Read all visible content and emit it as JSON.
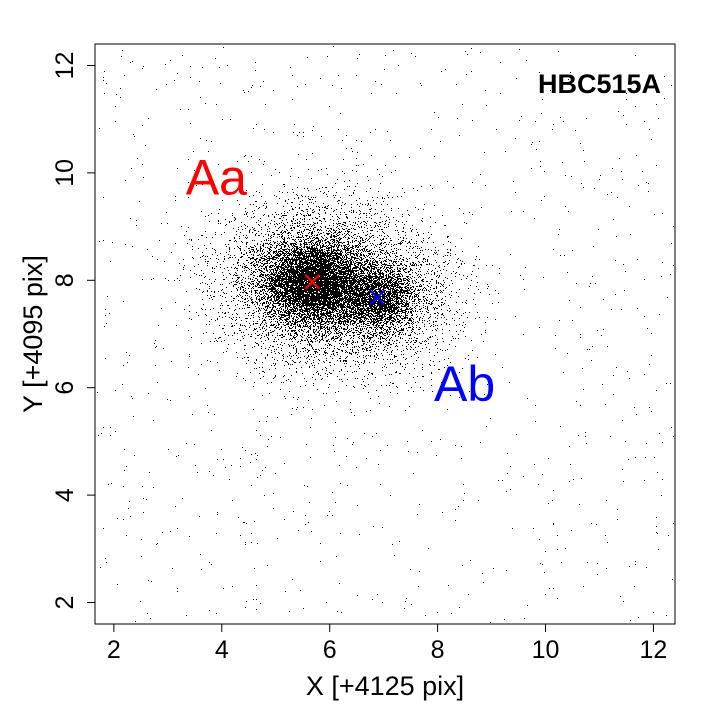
{
  "chart_data": {
    "type": "scatter",
    "title": "HBC515A",
    "xlabel": "X [+4125 pix]",
    "ylabel": "Y [+4095 pix]",
    "xlim": [
      1.65,
      12.4
    ],
    "ylim": [
      1.6,
      12.4
    ],
    "x_ticks": [
      2,
      4,
      6,
      8,
      10,
      12
    ],
    "y_ticks": [
      2,
      4,
      6,
      8,
      10,
      12
    ],
    "grid": false,
    "legend": "none",
    "point_color": "#000000",
    "components": [
      {
        "name": "Aa",
        "x": 5.68,
        "y": 7.97,
        "color": "#ff0000",
        "marker": "x"
      },
      {
        "name": "Ab",
        "x": 6.88,
        "y": 7.68,
        "color": "#0000ff",
        "marker": "x"
      }
    ],
    "annotations": [
      {
        "text": "Aa",
        "x": 3.9,
        "y": 9.6,
        "color": "#ff0000"
      },
      {
        "text": "Ab",
        "x": 8.5,
        "y": 5.75,
        "color": "#0000ff"
      }
    ],
    "point_cloud": {
      "sources": [
        {
          "x": 5.68,
          "y": 7.97,
          "sigma": 0.45,
          "points": 7000
        },
        {
          "x": 5.68,
          "y": 7.97,
          "sigma": 0.9,
          "points": 5000
        },
        {
          "x": 6.88,
          "y": 7.68,
          "sigma": 0.35,
          "points": 2500
        },
        {
          "x": 6.88,
          "y": 7.68,
          "sigma": 0.8,
          "points": 2500
        }
      ],
      "background_points": 900
    }
  }
}
